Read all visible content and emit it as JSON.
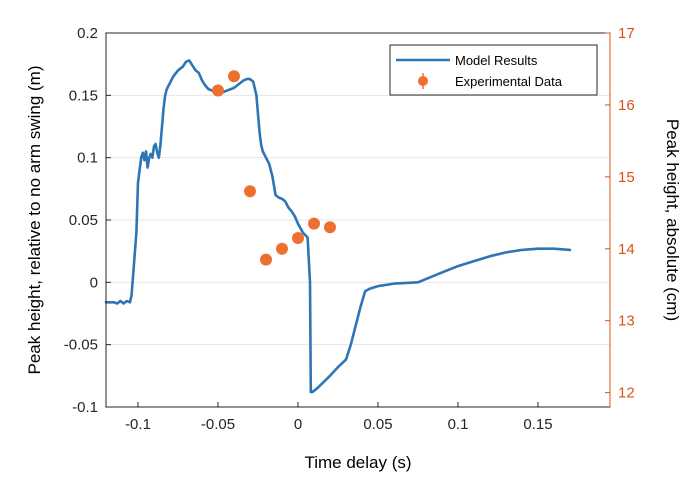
{
  "chart_data": {
    "type": "line+scatter",
    "xlabel": "Time delay (s)",
    "ylabel_left": "Peak height, relative to no arm swing (m)",
    "ylabel_right": "Peak height, absolute  (cm)",
    "xlim": [
      -0.12,
      0.195
    ],
    "ylim_left": [
      -0.1,
      0.2
    ],
    "ylim_right": [
      11.8,
      17
    ],
    "x_ticks": [
      -0.1,
      -0.05,
      0,
      0.05,
      0.1,
      0.15
    ],
    "x_tick_labels": [
      "-0.1",
      "-0.05",
      "0",
      "0.05",
      "0.1",
      "0.15"
    ],
    "y_left_ticks": [
      -0.1,
      -0.05,
      0,
      0.05,
      0.1,
      0.15,
      0.2
    ],
    "y_left_tick_labels": [
      "-0.1",
      "-0.05",
      "0",
      "0.05",
      "0.1",
      "0.15",
      "0.2"
    ],
    "y_right_ticks": [
      12,
      13,
      14,
      15,
      16,
      17
    ],
    "y_right_tick_labels": [
      "12",
      "13",
      "14",
      "15",
      "16",
      "17"
    ],
    "grid": "horizontal",
    "legend_position": "top-right",
    "colors": {
      "model": "#2e75b6",
      "experimental": "#ed7031",
      "right_axis": "#d95319"
    },
    "series": [
      {
        "name": "Model Results",
        "kind": "line",
        "x": [
          -0.12,
          -0.115,
          -0.113,
          -0.111,
          -0.109,
          -0.107,
          -0.105,
          -0.104,
          -0.1025,
          -0.101,
          -0.1,
          -0.099,
          -0.098,
          -0.097,
          -0.096,
          -0.095,
          -0.094,
          -0.093,
          -0.092,
          -0.091,
          -0.09,
          -0.089,
          -0.088,
          -0.087,
          -0.086,
          -0.085,
          -0.084,
          -0.083,
          -0.082,
          -0.08,
          -0.078,
          -0.075,
          -0.072,
          -0.07,
          -0.068,
          -0.066,
          -0.064,
          -0.062,
          -0.06,
          -0.058,
          -0.056,
          -0.054,
          -0.052,
          -0.05,
          -0.048,
          -0.046,
          -0.044,
          -0.042,
          -0.04,
          -0.038,
          -0.036,
          -0.034,
          -0.032,
          -0.03,
          -0.028,
          -0.026,
          -0.025,
          -0.024,
          -0.023,
          -0.022,
          -0.02,
          -0.018,
          -0.016,
          -0.014,
          -0.012,
          -0.01,
          -0.008,
          -0.006,
          -0.004,
          -0.002,
          0,
          0.003,
          0.006,
          0.0075,
          0.008,
          0.009,
          0.012,
          0.016,
          0.02,
          0.025,
          0.03,
          0.033,
          0.036,
          0.039,
          0.042,
          0.045,
          0.05,
          0.06,
          0.075,
          0.09,
          0.1,
          0.11,
          0.12,
          0.13,
          0.14,
          0.15,
          0.16,
          0.17
        ],
        "y": [
          -0.016,
          -0.016,
          -0.017,
          -0.015,
          -0.017,
          -0.015,
          -0.016,
          -0.01,
          0.015,
          0.04,
          0.08,
          0.09,
          0.1,
          0.104,
          0.098,
          0.105,
          0.092,
          0.1,
          0.103,
          0.1,
          0.109,
          0.111,
          0.104,
          0.1,
          0.11,
          0.125,
          0.14,
          0.15,
          0.155,
          0.16,
          0.165,
          0.17,
          0.173,
          0.177,
          0.178,
          0.174,
          0.17,
          0.168,
          0.162,
          0.158,
          0.155,
          0.154,
          0.153,
          0.152,
          0.152,
          0.153,
          0.154,
          0.155,
          0.156,
          0.158,
          0.16,
          0.162,
          0.163,
          0.163,
          0.161,
          0.15,
          0.135,
          0.12,
          0.11,
          0.105,
          0.1,
          0.095,
          0.085,
          0.07,
          0.068,
          0.067,
          0.065,
          0.06,
          0.057,
          0.053,
          0.047,
          0.04,
          0.036,
          0.0,
          -0.088,
          -0.088,
          -0.085,
          -0.08,
          -0.075,
          -0.068,
          -0.062,
          -0.05,
          -0.035,
          -0.02,
          -0.007,
          -0.005,
          -0.003,
          -0.001,
          0.0,
          0.008,
          0.013,
          0.017,
          0.021,
          0.024,
          0.026,
          0.027,
          0.027,
          0.026
        ]
      },
      {
        "name": "Experimental Data",
        "kind": "scatter",
        "axis": "right",
        "x": [
          -0.05,
          -0.04,
          -0.03,
          -0.02,
          -0.01,
          0,
          0.01,
          0.02
        ],
        "y": [
          16.2,
          16.4,
          14.8,
          13.85,
          14.0,
          14.15,
          14.35,
          14.3
        ]
      }
    ]
  }
}
